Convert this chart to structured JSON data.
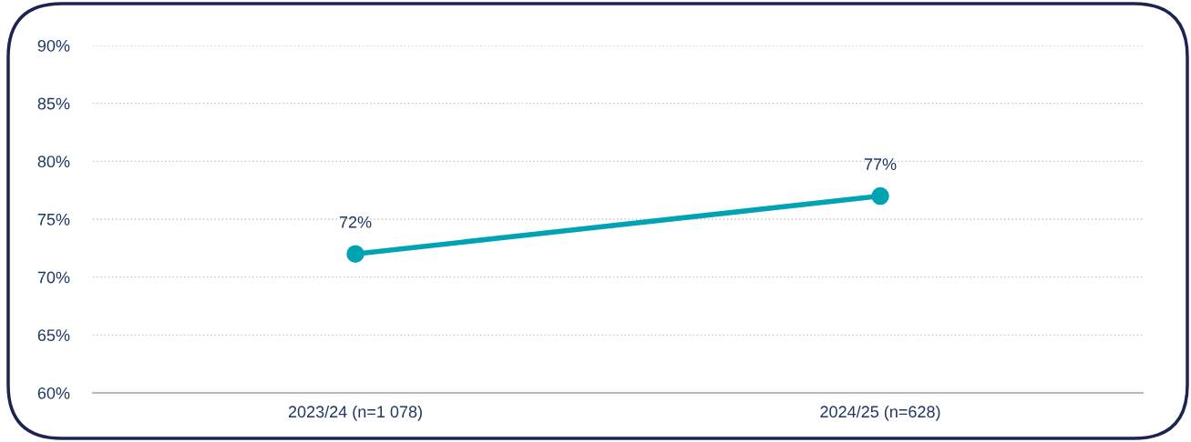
{
  "chart_data": {
    "type": "line",
    "categories": [
      "2023/24 (n=1 078)",
      "2024/25 (n=628)"
    ],
    "series": [
      {
        "color": "#00a3b1",
        "values": [
          72,
          77
        ],
        "value_labels": [
          "72%",
          "77%"
        ]
      }
    ],
    "ylim": [
      60,
      90
    ],
    "yticks": [
      {
        "value": 60,
        "label": "60%"
      },
      {
        "value": 65,
        "label": "65%"
      },
      {
        "value": 70,
        "label": "70%"
      },
      {
        "value": 75,
        "label": "75%"
      },
      {
        "value": 80,
        "label": "80%"
      },
      {
        "value": 85,
        "label": "85%"
      },
      {
        "value": 90,
        "label": "90%"
      }
    ],
    "grid": "y",
    "marker": "circle",
    "line_style": "solid"
  }
}
